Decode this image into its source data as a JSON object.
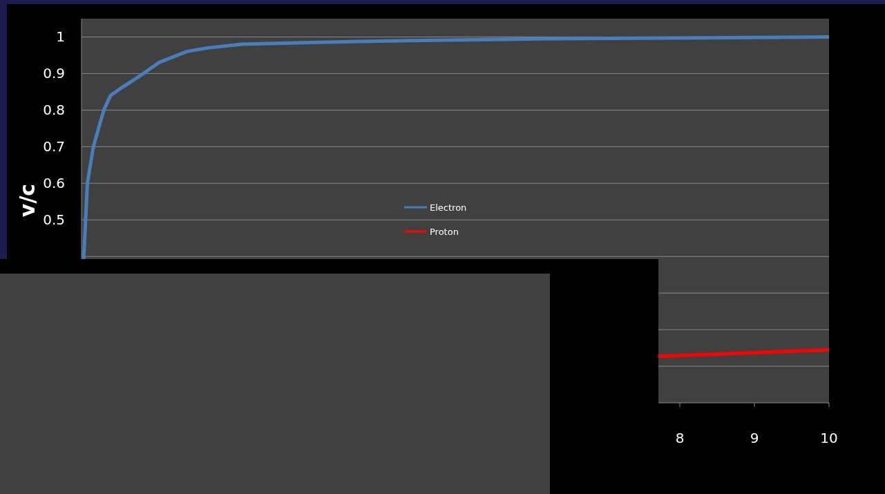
{
  "chart_data": {
    "type": "line",
    "ylabel": "v/c",
    "xlim": [
      0,
      10
    ],
    "xticks": [
      8,
      9,
      10
    ],
    "ylim": [
      0,
      1.05
    ],
    "yticks": [
      {
        "value": 0.1,
        "label": null
      },
      {
        "value": 0.2,
        "label": null
      },
      {
        "value": 0.3,
        "label": null
      },
      {
        "value": 0.4,
        "label": null
      },
      0.5,
      0.6,
      0.7,
      0.8,
      0.9,
      1
    ],
    "grid": "y",
    "legend": "center",
    "marker": "none",
    "series": [
      {
        "name": "Electron",
        "color": "#4a7ebb",
        "x": [
          0.01,
          0.06,
          0.14,
          0.28,
          0.37,
          0.51,
          0.74,
          1.02,
          1.39,
          1.67,
          2.13,
          3.06,
          4.4,
          6.3,
          10
        ],
        "values": [
          0.39,
          0.6,
          0.7,
          0.8,
          0.84,
          0.86,
          0.89,
          0.93,
          0.96,
          0.97,
          0.98,
          0.985,
          0.99,
          0.995,
          1.0
        ]
      },
      {
        "name": "Proton",
        "color": "#ff0000",
        "x": [
          7.7,
          8,
          9,
          10
        ],
        "values": [
          0.127,
          0.129,
          0.137,
          0.145
        ]
      }
    ]
  }
}
